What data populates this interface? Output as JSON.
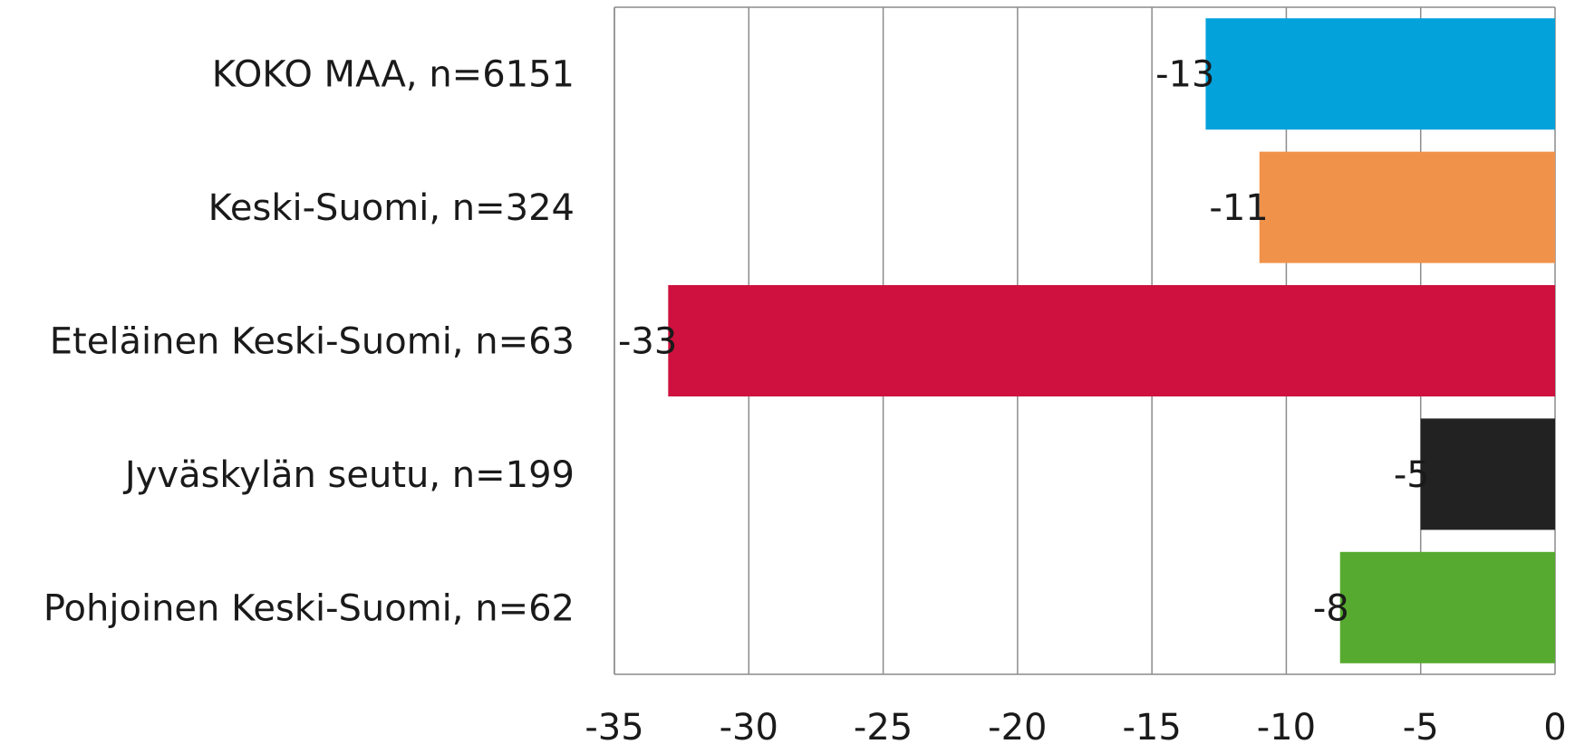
{
  "chart_data": {
    "type": "bar",
    "orientation": "horizontal",
    "categories": [
      "KOKO MAA, n=6151",
      "Keski-Suomi, n=324",
      "Eteläinen Keski-Suomi, n=63",
      "Jyväskylän seutu, n=199",
      "Pohjoinen Keski-Suomi, n=62"
    ],
    "values": [
      -13,
      -11,
      -33,
      -5,
      -8
    ],
    "data_labels": [
      "-13",
      "-11",
      "-33",
      "-5",
      "-8"
    ],
    "colors": [
      "#03a2db",
      "#f0924a",
      "#ce113e",
      "#222222",
      "#56aa2f"
    ],
    "xlim": [
      -35,
      0
    ],
    "xticks": [
      -35,
      -30,
      -25,
      -20,
      -15,
      -10,
      -5,
      0
    ],
    "xtick_labels": [
      "-35",
      "-30",
      "-25",
      "-20",
      "-15",
      "-10",
      "-5",
      "0"
    ],
    "grid": "vertical",
    "legend": "none",
    "title": "",
    "xlabel": "",
    "ylabel": ""
  }
}
